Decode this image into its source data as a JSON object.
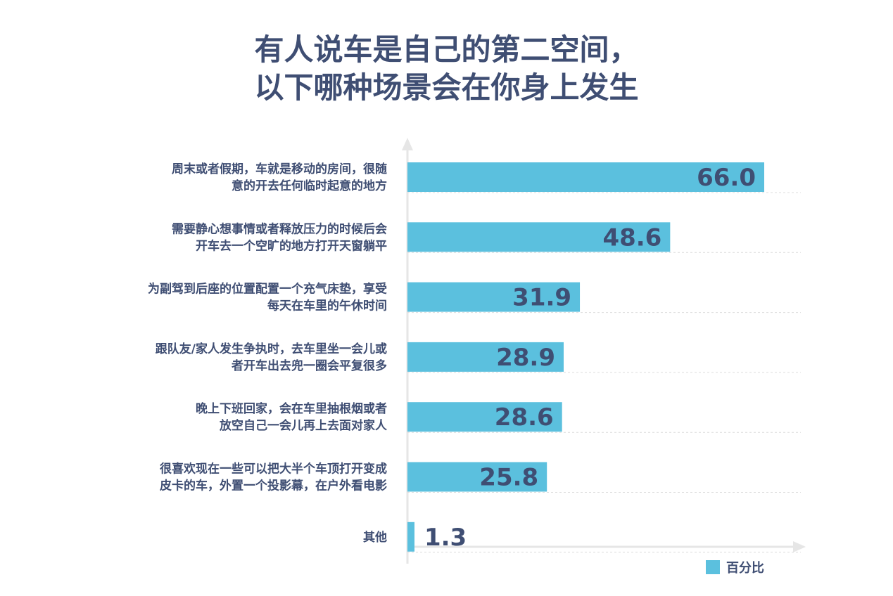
{
  "title": {
    "line1": "有人说车是自己的第二空间，",
    "line2": "以下哪种场景会在你身上发生"
  },
  "colors": {
    "bar": "#5bc0de",
    "text": "#3f4e73",
    "axis": "#e6e6e6",
    "grid": "#dcdcdc"
  },
  "chart_data": {
    "type": "bar",
    "orientation": "horizontal",
    "categories": [
      [
        "周末或者假期，车就是移动的房间，很随",
        "意的开去任何临时起意的地方"
      ],
      [
        "需要静心想事情或者释放压力的时候后会",
        "开车去一个空旷的地方打开天窗躺平"
      ],
      [
        "为副驾到后座的位置配置一个充气床垫，享受",
        "每天在车里的午休时间"
      ],
      [
        "跟队友/家人发生争执时，去车里坐一会儿或",
        "者开车出去兜一圈会平复很多"
      ],
      [
        "晚上下班回家，会在车里抽根烟或者",
        "放空自己一会儿再上去面对家人"
      ],
      [
        "很喜欢现在一些可以把大半个车顶打开变成",
        "皮卡的车，外置一个投影幕，在户外看电影"
      ],
      [
        "其他"
      ]
    ],
    "series": [
      {
        "name": "百分比",
        "values": [
          66.0,
          48.6,
          31.9,
          28.9,
          28.6,
          25.8,
          1.3
        ]
      }
    ],
    "value_labels": [
      "66.0",
      "48.6",
      "31.9",
      "28.9",
      "28.6",
      "25.8",
      "1.3"
    ],
    "xlim": [
      0,
      72
    ],
    "grid": true,
    "legend_position": "bottom-right"
  }
}
